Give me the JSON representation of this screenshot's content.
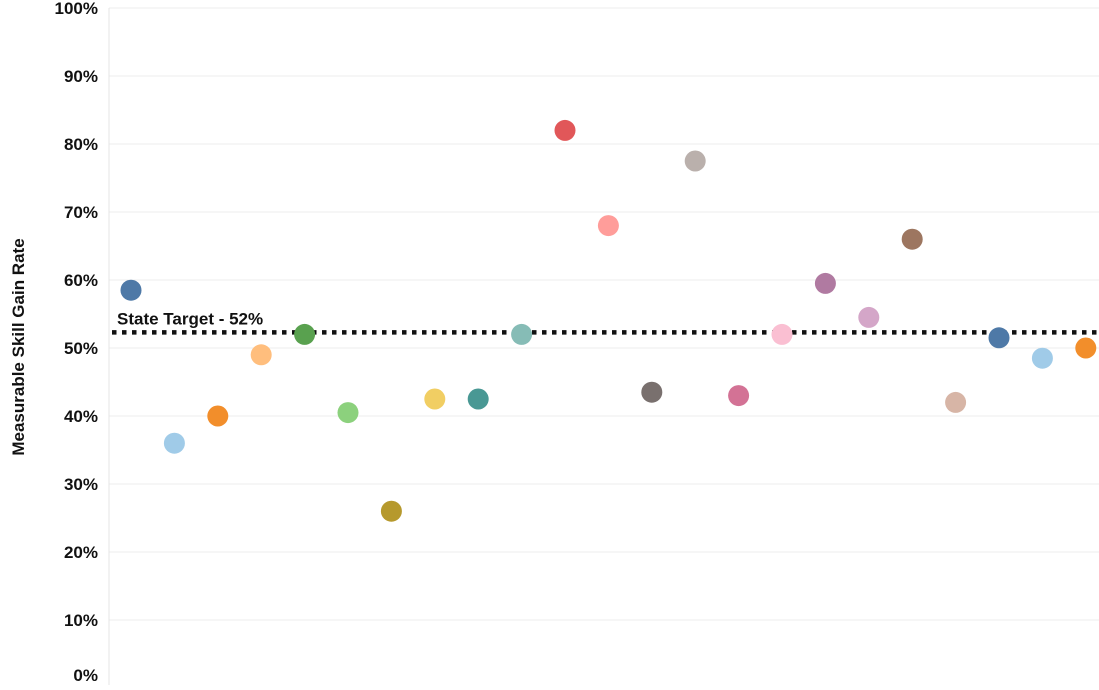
{
  "chart_data": {
    "type": "scatter",
    "title": "",
    "xlabel": "",
    "ylabel": "Measurable Skill Gain Rate",
    "ylim": [
      0,
      100
    ],
    "y_ticks": [
      "0%",
      "10%",
      "20%",
      "30%",
      "40%",
      "50%",
      "60%",
      "70%",
      "80%",
      "90%",
      "100%"
    ],
    "grid": "horizontal",
    "reference_line": {
      "value": 52,
      "label": "State Target - 52%",
      "style": "dotted"
    },
    "points": [
      {
        "x": 1,
        "y": 58.5,
        "color": "#4e79a7"
      },
      {
        "x": 2,
        "y": 36,
        "color": "#a0cbe8"
      },
      {
        "x": 3,
        "y": 40,
        "color": "#f28e2b"
      },
      {
        "x": 4,
        "y": 49,
        "color": "#ffbe7d"
      },
      {
        "x": 5,
        "y": 52,
        "color": "#59a14f"
      },
      {
        "x": 6,
        "y": 40.5,
        "color": "#8cd17d"
      },
      {
        "x": 7,
        "y": 26,
        "color": "#b6992d"
      },
      {
        "x": 8,
        "y": 42.5,
        "color": "#f1ce63"
      },
      {
        "x": 9,
        "y": 42.5,
        "color": "#499894"
      },
      {
        "x": 10,
        "y": 52,
        "color": "#86bcb6"
      },
      {
        "x": 11,
        "y": 82,
        "color": "#e15759"
      },
      {
        "x": 12,
        "y": 68,
        "color": "#ff9d9a"
      },
      {
        "x": 13,
        "y": 43.5,
        "color": "#79706e"
      },
      {
        "x": 14,
        "y": 77.5,
        "color": "#bab0ac"
      },
      {
        "x": 15,
        "y": 43,
        "color": "#d37295"
      },
      {
        "x": 16,
        "y": 52,
        "color": "#fabfd2"
      },
      {
        "x": 17,
        "y": 59.5,
        "color": "#b07aa1"
      },
      {
        "x": 18,
        "y": 54.5,
        "color": "#d4a6c8"
      },
      {
        "x": 19,
        "y": 66,
        "color": "#9d7660"
      },
      {
        "x": 20,
        "y": 42,
        "color": "#d7b5a6"
      },
      {
        "x": 21,
        "y": 51.5,
        "color": "#4e79a7"
      },
      {
        "x": 22,
        "y": 48.5,
        "color": "#a0cbe8"
      },
      {
        "x": 23,
        "y": 50,
        "color": "#f28e2b"
      }
    ]
  }
}
